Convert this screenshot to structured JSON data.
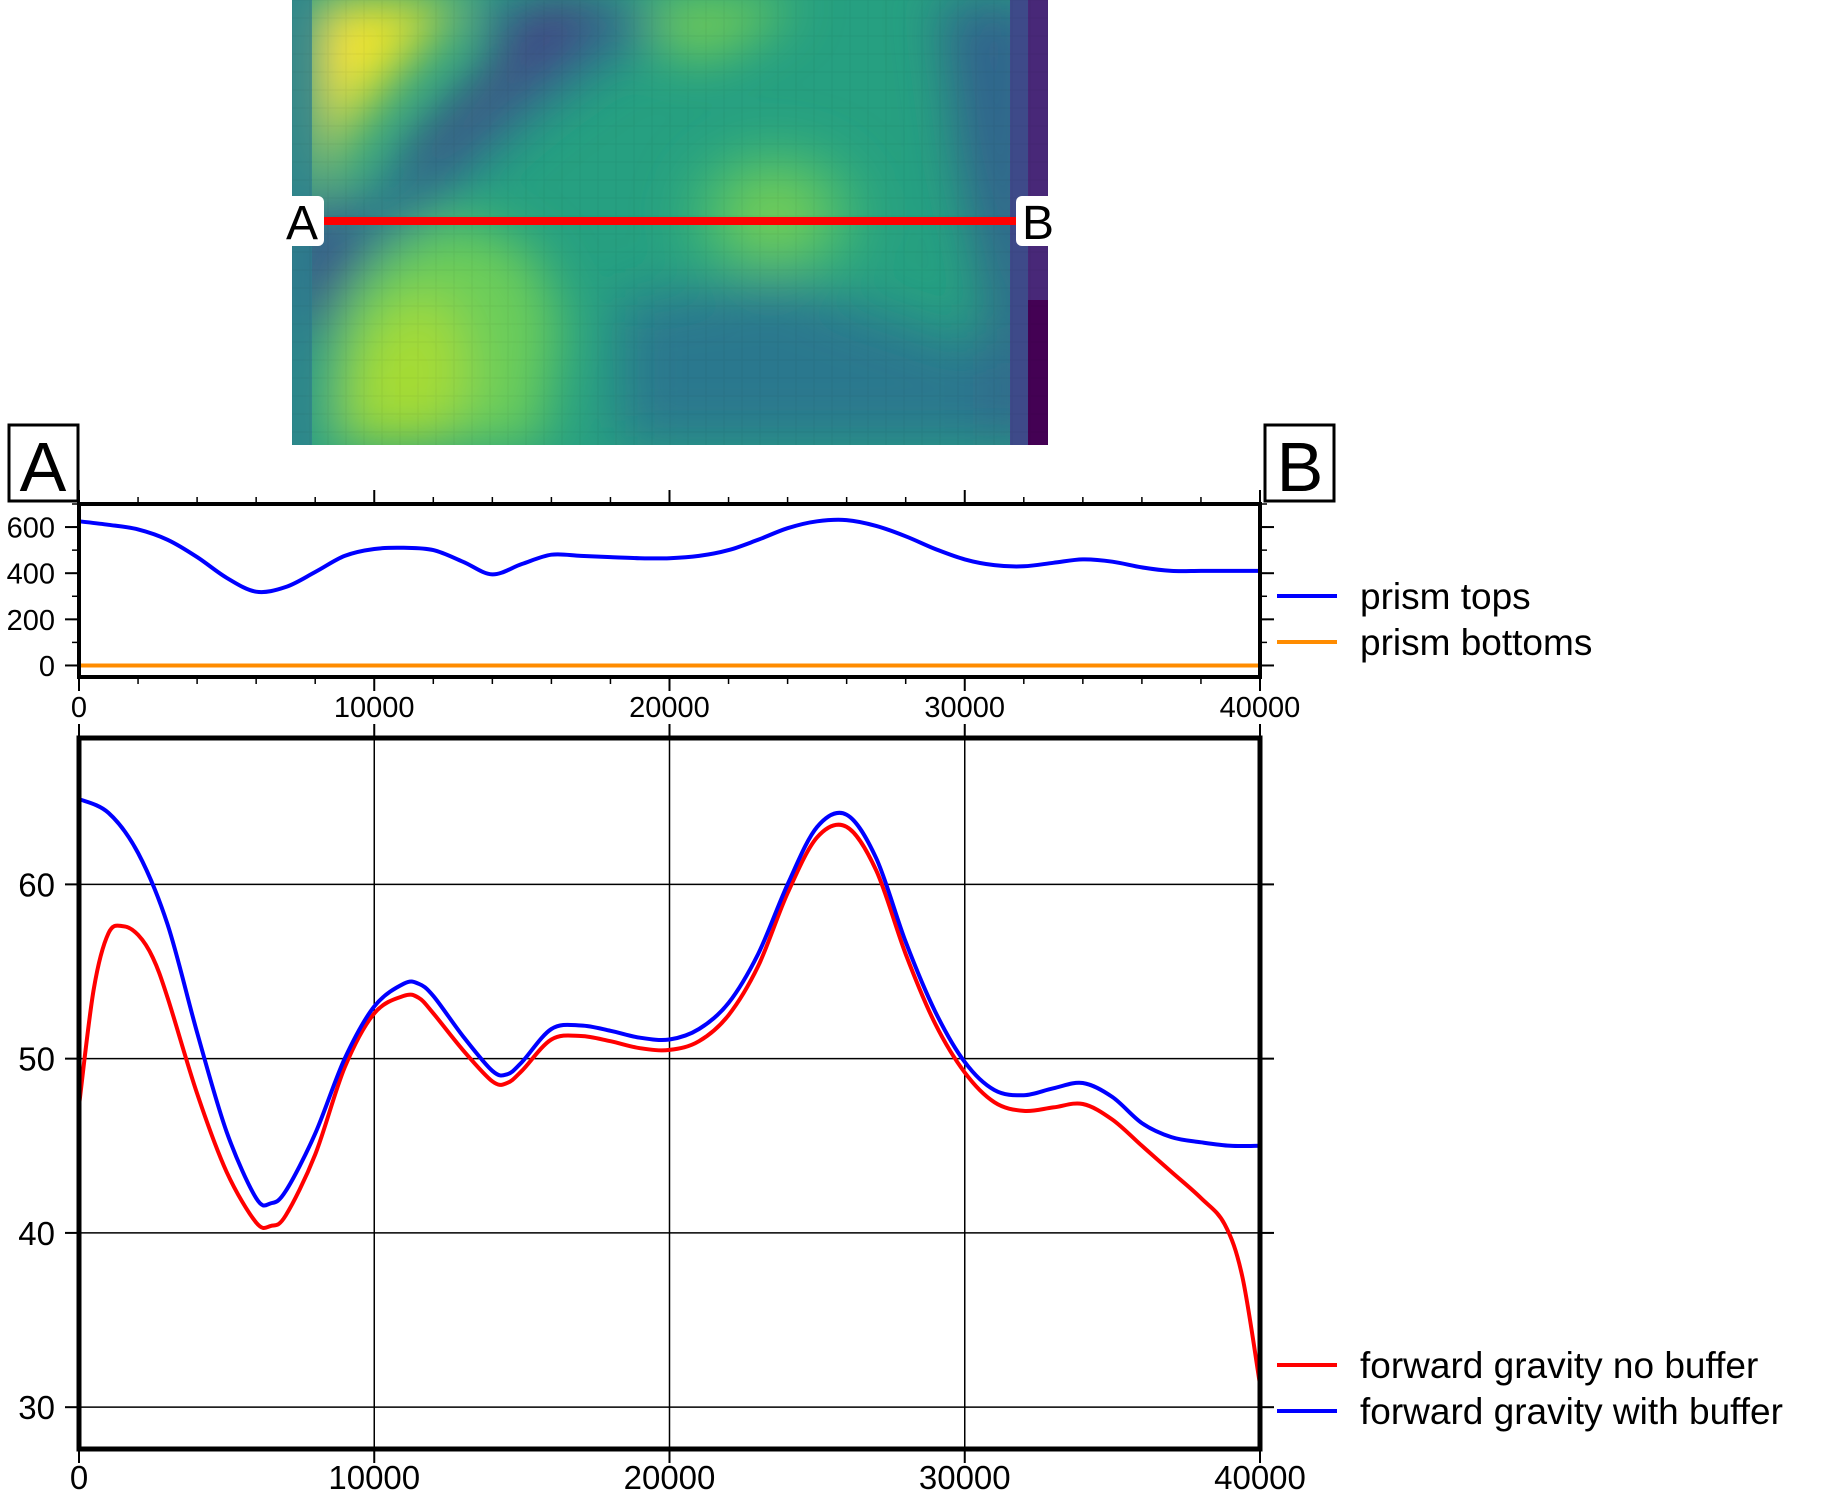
{
  "map": {
    "label_a": "A",
    "label_b": "B",
    "profile_color": "#ff0000",
    "colormap": "viridis"
  },
  "end_labels": {
    "left": "A",
    "right": "B"
  },
  "chart_data": [
    {
      "type": "line",
      "xlim": [
        0,
        40000
      ],
      "ylim": [
        -50,
        700
      ],
      "xticks": [
        0,
        10000,
        20000,
        30000,
        40000
      ],
      "xtick_labels": [
        "0",
        "10000",
        "20000",
        "30000",
        "40000"
      ],
      "yticks": [
        0,
        200,
        400,
        600
      ],
      "ytick_labels": [
        "0",
        "200",
        "400",
        "600"
      ],
      "grid": false,
      "legend_position": "right",
      "series": [
        {
          "name": "prism tops",
          "color": "#0000ff",
          "x": [
            0,
            1000,
            2000,
            3000,
            4000,
            5000,
            6000,
            7000,
            8000,
            9000,
            10000,
            11000,
            12000,
            13000,
            14000,
            15000,
            16000,
            17000,
            18000,
            19000,
            20000,
            21000,
            22000,
            23000,
            24000,
            25000,
            26000,
            27000,
            28000,
            29000,
            30000,
            31000,
            32000,
            33000,
            34000,
            35000,
            36000,
            37000,
            38000,
            39000,
            40000
          ],
          "y": [
            625,
            610,
            590,
            545,
            470,
            380,
            320,
            340,
            405,
            475,
            505,
            510,
            500,
            450,
            395,
            440,
            480,
            475,
            470,
            465,
            465,
            475,
            500,
            545,
            595,
            625,
            630,
            605,
            560,
            505,
            460,
            435,
            430,
            445,
            460,
            450,
            425,
            410,
            410,
            410,
            410
          ]
        },
        {
          "name": "prism bottoms",
          "color": "#ff8c00",
          "x": [
            0,
            40000
          ],
          "y": [
            0,
            0
          ]
        }
      ]
    },
    {
      "type": "line",
      "xlim": [
        0,
        40000
      ],
      "ylim": [
        27.6,
        68.4
      ],
      "xticks": [
        0,
        10000,
        20000,
        30000,
        40000
      ],
      "xtick_labels": [
        "0",
        "10000",
        "20000",
        "30000",
        "40000"
      ],
      "yticks": [
        30,
        40,
        50,
        60
      ],
      "ytick_labels": [
        "30",
        "40",
        "50",
        "60"
      ],
      "grid": true,
      "legend_position": "bottom-right",
      "series": [
        {
          "name": "forward gravity no buffer",
          "color": "#ff0000",
          "x": [
            0,
            500,
            1000,
            1500,
            2000,
            2500,
            3000,
            4000,
            5000,
            6000,
            6500,
            7000,
            8000,
            9000,
            10000,
            11000,
            11500,
            12000,
            13000,
            14000,
            14500,
            15000,
            16000,
            17000,
            18000,
            19000,
            20000,
            21000,
            22000,
            23000,
            24000,
            25000,
            26000,
            27000,
            28000,
            29000,
            30000,
            31000,
            32000,
            33000,
            34000,
            35000,
            36000,
            37000,
            38000,
            38800,
            39400,
            40000
          ],
          "y": [
            47.3,
            54.0,
            57.2,
            57.6,
            57.1,
            55.8,
            53.5,
            48.0,
            43.5,
            40.6,
            40.4,
            41.0,
            44.5,
            49.5,
            52.6,
            53.6,
            53.5,
            52.6,
            50.5,
            48.7,
            48.6,
            49.3,
            51.1,
            51.3,
            51.0,
            50.6,
            50.5,
            51.0,
            52.5,
            55.3,
            59.5,
            62.7,
            63.3,
            60.8,
            56.0,
            52.0,
            49.2,
            47.5,
            47.0,
            47.2,
            47.4,
            46.5,
            45.0,
            43.5,
            42.0,
            40.5,
            37.5,
            31.3
          ]
        },
        {
          "name": "forward gravity with buffer",
          "color": "#0000ff",
          "x": [
            0,
            1000,
            2000,
            3000,
            4000,
            5000,
            6000,
            6500,
            7000,
            8000,
            9000,
            10000,
            11000,
            11500,
            12000,
            13000,
            14000,
            14500,
            15000,
            16000,
            17000,
            18000,
            19000,
            20000,
            21000,
            22000,
            23000,
            24000,
            25000,
            26000,
            27000,
            28000,
            29000,
            30000,
            31000,
            32000,
            33000,
            34000,
            35000,
            36000,
            37000,
            38000,
            39000,
            40000
          ],
          "y": [
            64.9,
            64.1,
            61.8,
            57.7,
            51.5,
            45.8,
            42.0,
            41.7,
            42.4,
            45.7,
            50.0,
            53.0,
            54.3,
            54.3,
            53.6,
            51.3,
            49.3,
            49.1,
            49.8,
            51.7,
            51.9,
            51.6,
            51.2,
            51.1,
            51.7,
            53.2,
            56.0,
            60.0,
            63.3,
            64.0,
            61.5,
            56.7,
            52.7,
            49.8,
            48.2,
            47.9,
            48.3,
            48.6,
            47.8,
            46.3,
            45.5,
            45.2,
            45.0,
            45.0
          ]
        }
      ]
    }
  ]
}
